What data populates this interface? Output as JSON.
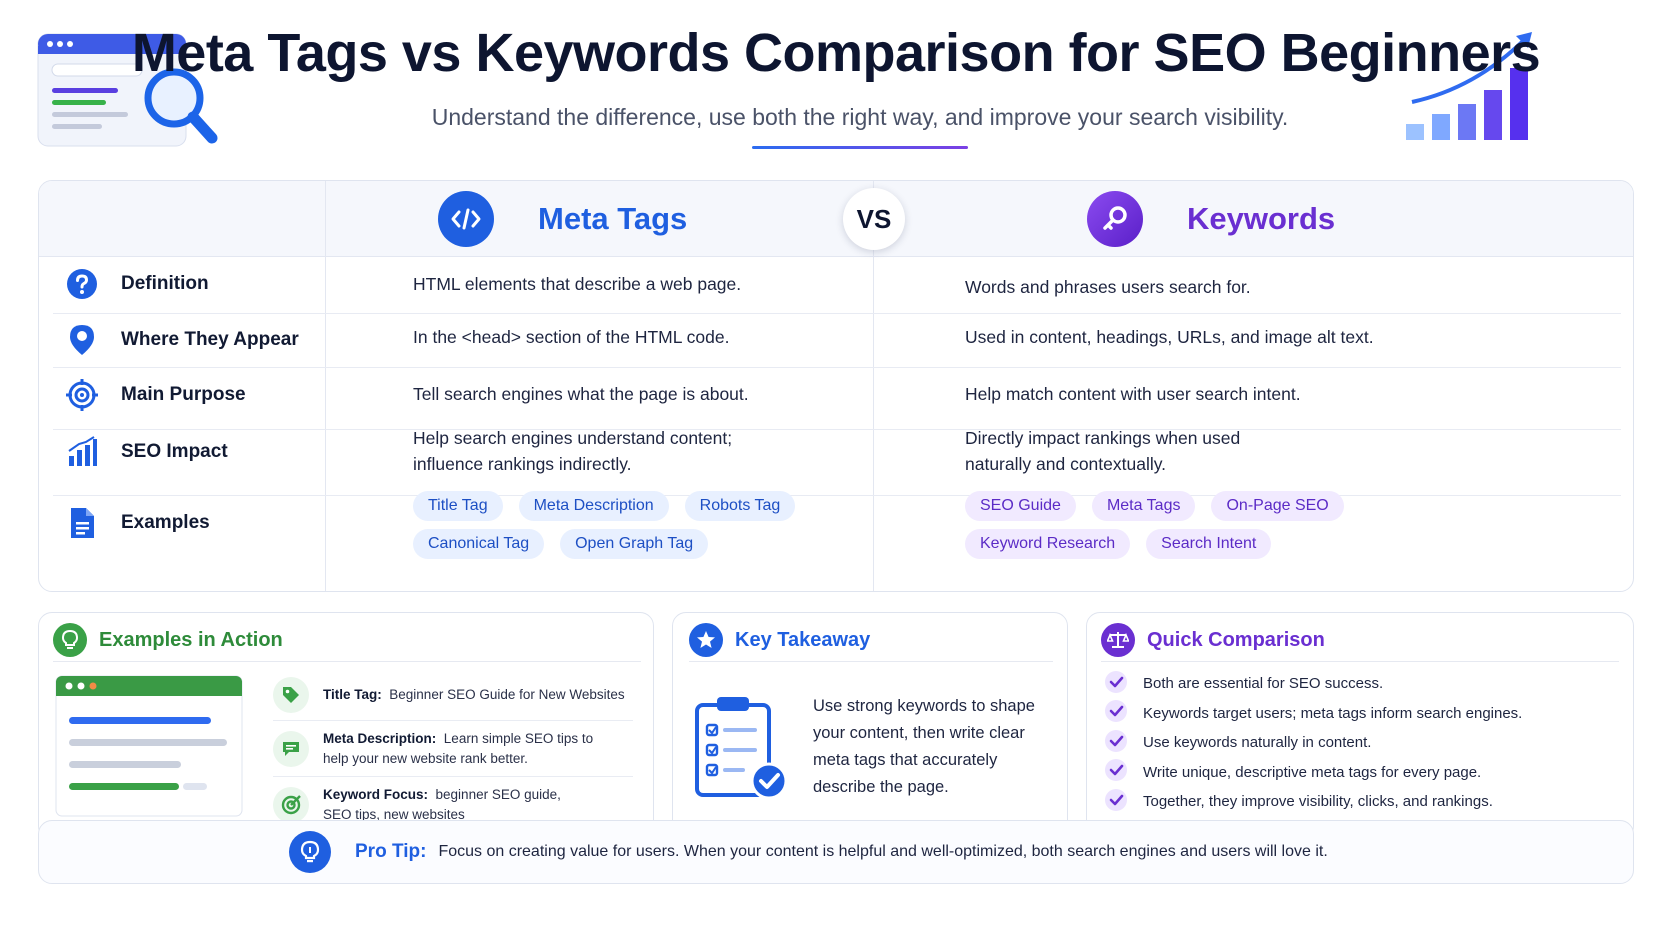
{
  "header": {
    "title": "Meta Tags vs Keywords Comparison for SEO Beginners",
    "subtitle": "Understand the difference, use both the right way, and improve your search visibility."
  },
  "comparison": {
    "meta_heading": "Meta Tags",
    "vs_label": "VS",
    "keywords_heading": "Keywords",
    "rows": [
      {
        "label": "Definition",
        "icon": "question-circle-icon",
        "meta": "HTML elements that describe a web page.",
        "keywords": "Words and phrases users search for."
      },
      {
        "label": "Where They Appear",
        "icon": "map-pin-icon",
        "meta": "In the <head> section of the HTML code.",
        "keywords": "Used in content, headings, URLs, and image alt text."
      },
      {
        "label": "Main Purpose",
        "icon": "target-icon",
        "meta": "Tell search engines what the page is about.",
        "keywords": "Help match content with user search intent."
      },
      {
        "label": "SEO Impact",
        "icon": "bar-chart-icon",
        "meta_line1": "Help search engines understand content;",
        "meta_line2": "influence rankings indirectly.",
        "keywords_line1": "Directly impact rankings when used",
        "keywords_line2": "naturally and contextually."
      },
      {
        "label": "Examples",
        "icon": "document-icon",
        "meta_chips_row1": [
          "Title Tag",
          "Meta Description",
          "Robots Tag"
        ],
        "meta_chips_row2": [
          "Canonical Tag",
          "Open Graph Tag"
        ],
        "keywords_chips_row1": [
          "SEO Guide",
          "Meta Tags",
          "On-Page SEO"
        ],
        "keywords_chips_row2": [
          "Keyword Research",
          "Search Intent"
        ]
      }
    ]
  },
  "examples_card": {
    "title": "Examples in Action",
    "items": [
      {
        "label": "Title Tag:",
        "text": "Beginner SEO Guide for New Websites",
        "icon": "tag-icon"
      },
      {
        "label": "Meta Description:",
        "text": "Learn simple SEO tips to",
        "text2": "help your new website rank better.",
        "icon": "message-icon"
      },
      {
        "label": "Keyword Focus:",
        "text": "beginner SEO guide,",
        "text2": "SEO tips, new websites",
        "icon": "target-check-icon"
      }
    ]
  },
  "takeaway_card": {
    "title": "Key Takeaway",
    "lines": [
      "Use strong keywords to shape",
      "your content, then write clear",
      "meta tags that accurately",
      "describe the page."
    ]
  },
  "quick_card": {
    "title": "Quick Comparison",
    "items": [
      "Both are essential for SEO success.",
      "Keywords target users; meta tags inform search engines.",
      "Use keywords naturally in content.",
      "Write unique, descriptive meta tags for every page.",
      "Together, they improve visibility, clicks, and rankings."
    ]
  },
  "pro_tip": {
    "label": "Pro Tip:",
    "text": "Focus on creating value for users. When your content is helpful and well-optimized, both search engines and users will love it."
  },
  "colors": {
    "meta_blue": "#1f5fe0",
    "keywords_purple": "#6a2fd1",
    "examples_green": "#2e8b3a",
    "dark_navy": "#0d1530"
  }
}
